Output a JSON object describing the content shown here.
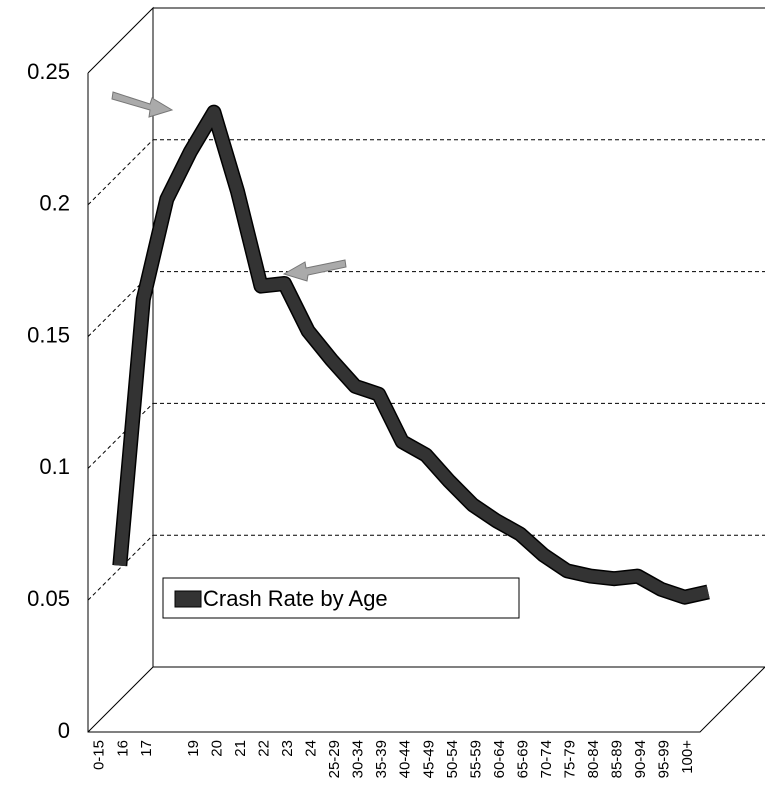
{
  "chart_data": {
    "type": "line",
    "categories": [
      "0-15",
      "16",
      "17",
      null,
      "19",
      "20",
      "21",
      "22",
      "23",
      "24",
      "25-29",
      "30-34",
      "35-39",
      "40-44",
      "45-49",
      "50-54",
      "55-59",
      "60-64",
      "65-69",
      "70-74",
      "75-79",
      "80-84",
      "85-89",
      "90-94",
      "95-99",
      "100+"
    ],
    "series": [
      {
        "name": "Crash Rate by Age",
        "color": "#333333",
        "values": [
          0.051,
          0.152,
          0.19,
          0.208,
          0.223,
          0.193,
          0.157,
          0.158,
          0.14,
          0.129,
          0.119,
          0.116,
          0.098,
          0.093,
          0.083,
          0.074,
          0.068,
          0.063,
          0.055,
          0.049,
          0.047,
          0.046,
          0.047,
          0.042,
          0.039,
          0.041
        ]
      }
    ],
    "ylim": [
      0,
      0.25
    ],
    "yticks": [
      0,
      0.05,
      0.1,
      0.15,
      0.2,
      0.25
    ],
    "grid": true
  }
}
